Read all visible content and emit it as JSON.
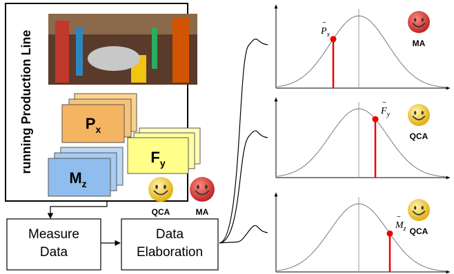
{
  "production_line": {
    "label": "running Production Line"
  },
  "stacks": [
    {
      "main": "P",
      "sub": "x"
    },
    {
      "main": "F",
      "sub": "y"
    },
    {
      "main": "M",
      "sub": "z"
    }
  ],
  "agents": [
    "QCA",
    "MA"
  ],
  "boxes": [
    {
      "lines": [
        "Measure",
        "Data"
      ]
    },
    {
      "lines": [
        "Data",
        "Elaboration"
      ]
    }
  ],
  "plots": [
    {
      "label_main": "P",
      "label_sub": "x",
      "agent": "MA"
    },
    {
      "label_main": "F",
      "label_sub": "y",
      "agent": "QCA"
    },
    {
      "label_main": "M",
      "label_sub": "z",
      "agent": "QCA"
    }
  ]
}
